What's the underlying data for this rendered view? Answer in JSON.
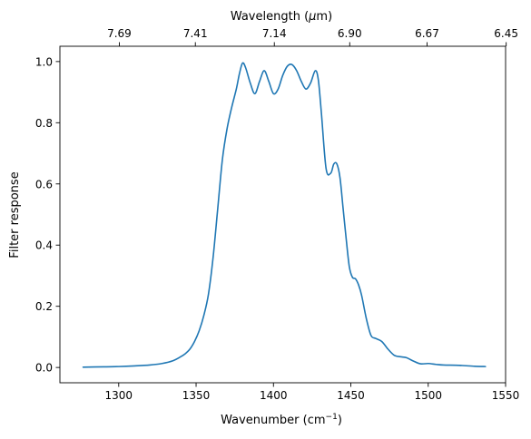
{
  "chart_data": {
    "type": "line",
    "x_axis": {
      "label": "Wavenumber (cm",
      "label_sup": "−1",
      "label_suffix": ")",
      "range": [
        1262,
        1550
      ],
      "ticks": [
        1300,
        1350,
        1400,
        1450,
        1500,
        1550
      ],
      "tick_labels": [
        "1300",
        "1350",
        "1400",
        "1450",
        "1500",
        "1550"
      ]
    },
    "x2_axis": {
      "label_prefix": "Wavelength (",
      "label_mu": "μ",
      "label_suffix": "m)",
      "tick_labels": [
        "7.69",
        "7.41",
        "7.14",
        "6.90",
        "6.67",
        "6.45"
      ],
      "tick_values_um": [
        7.69,
        7.41,
        7.14,
        6.9,
        6.67,
        6.45
      ]
    },
    "y_axis": {
      "label": "Filter response",
      "range": [
        -0.05,
        1.05
      ],
      "ticks": [
        0.0,
        0.2,
        0.4,
        0.6,
        0.8,
        1.0
      ],
      "tick_labels": [
        "0.0",
        "0.2",
        "0.4",
        "0.6",
        "0.8",
        "1.0"
      ]
    },
    "grid": false,
    "series": [
      {
        "color": "#1f77b4",
        "x": [
          1277,
          1290,
          1300,
          1310,
          1320,
          1328,
          1335,
          1340,
          1343,
          1346,
          1349,
          1352,
          1355,
          1358,
          1361,
          1364,
          1367,
          1370,
          1373,
          1376,
          1378,
          1380,
          1382,
          1385,
          1388,
          1391,
          1394,
          1397,
          1400,
          1403,
          1406,
          1409,
          1412,
          1415,
          1418,
          1421,
          1424,
          1427,
          1429,
          1431,
          1434,
          1437,
          1439,
          1441,
          1443,
          1445,
          1447,
          1449,
          1451,
          1453,
          1455,
          1457,
          1460,
          1463,
          1466,
          1470,
          1474,
          1478,
          1482,
          1486,
          1490,
          1495,
          1500,
          1505,
          1510,
          1520,
          1530,
          1537
        ],
        "y": [
          0.001,
          0.002,
          0.003,
          0.005,
          0.008,
          0.013,
          0.022,
          0.035,
          0.045,
          0.06,
          0.085,
          0.12,
          0.17,
          0.24,
          0.36,
          0.52,
          0.68,
          0.78,
          0.85,
          0.91,
          0.96,
          0.995,
          0.98,
          0.93,
          0.895,
          0.935,
          0.97,
          0.935,
          0.895,
          0.91,
          0.955,
          0.985,
          0.99,
          0.97,
          0.935,
          0.91,
          0.93,
          0.97,
          0.94,
          0.83,
          0.65,
          0.635,
          0.665,
          0.665,
          0.62,
          0.52,
          0.42,
          0.33,
          0.295,
          0.29,
          0.27,
          0.235,
          0.16,
          0.105,
          0.095,
          0.085,
          0.06,
          0.04,
          0.035,
          0.032,
          0.022,
          0.012,
          0.013,
          0.01,
          0.008,
          0.007,
          0.004,
          0.003
        ]
      }
    ]
  }
}
